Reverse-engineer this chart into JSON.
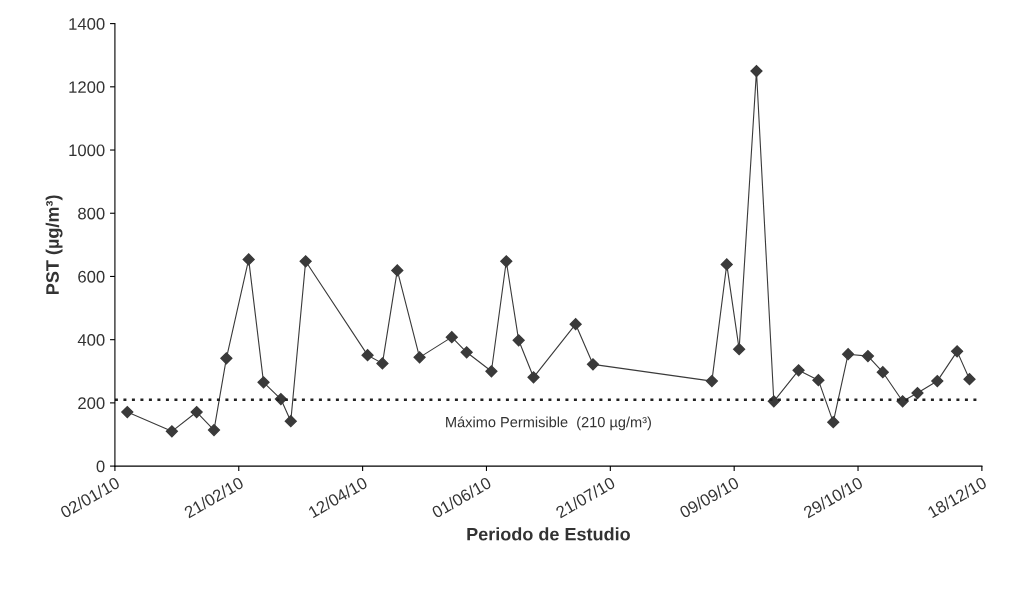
{
  "chart_data": {
    "type": "line",
    "xlabel": "Periodo de Estudio",
    "ylabel": "PST (µg/m³)",
    "x": [
      "2010-01-07",
      "2010-01-25",
      "2010-02-04",
      "2010-02-11",
      "2010-02-16",
      "2010-02-25",
      "2010-03-03",
      "2010-03-10",
      "2010-03-14",
      "2010-03-20",
      "2010-04-14",
      "2010-04-20",
      "2010-04-26",
      "2010-05-05",
      "2010-05-18",
      "2010-05-24",
      "2010-06-03",
      "2010-06-09",
      "2010-06-14",
      "2010-06-20",
      "2010-07-07",
      "2010-07-14",
      "2010-08-31",
      "2010-09-06",
      "2010-09-11",
      "2010-09-18",
      "2010-09-25",
      "2010-10-05",
      "2010-10-13",
      "2010-10-19",
      "2010-10-25",
      "2010-11-02",
      "2010-11-08",
      "2010-11-16",
      "2010-11-22",
      "2010-11-30",
      "2010-12-08",
      "2010-12-13"
    ],
    "series": [
      {
        "color": "#3a3a3a",
        "values": [
          171,
          110,
          171,
          114,
          341,
          654,
          265,
          212,
          142,
          648,
          351,
          325,
          619,
          344,
          408,
          360,
          300,
          648,
          398,
          281,
          449,
          322,
          269,
          638,
          370,
          1250,
          205,
          303,
          272,
          139,
          354,
          348,
          297,
          205,
          231,
          269,
          363,
          275
        ]
      }
    ],
    "xlim": [
      "2010-01-02",
      "2010-12-18"
    ],
    "xticks": [
      {
        "value": "2010-01-02",
        "label": "02/01/10"
      },
      {
        "value": "2010-02-21",
        "label": "21/02/10"
      },
      {
        "value": "2010-04-12",
        "label": "12/04/10"
      },
      {
        "value": "2010-06-01",
        "label": "01/06/10"
      },
      {
        "value": "2010-07-21",
        "label": "21/07/10"
      },
      {
        "value": "2010-09-09",
        "label": "09/09/10"
      },
      {
        "value": "2010-10-29",
        "label": "29/10/10"
      },
      {
        "value": "2010-12-18",
        "label": "18/12/10"
      }
    ],
    "ylim": [
      0,
      1400
    ],
    "yticks": [
      0,
      200,
      400,
      600,
      800,
      1000,
      1200,
      1400
    ],
    "ref_lines": [
      {
        "axis": "y",
        "value": 210,
        "label": "Máximo Permisible  (210 µg/m³)",
        "color": "#222222",
        "line_style": "dotted"
      }
    ],
    "marker": "diamond",
    "line_style": "solid",
    "grid": false,
    "legend": false
  }
}
